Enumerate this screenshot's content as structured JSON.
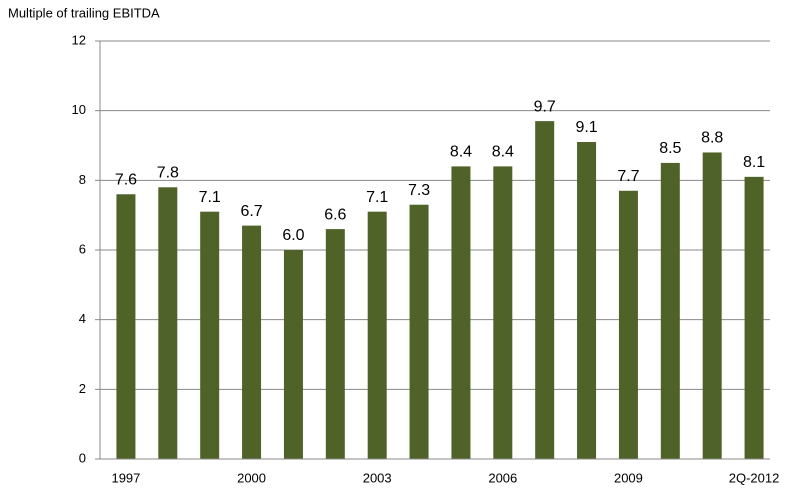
{
  "chart_data": {
    "type": "bar",
    "y_label": "Multiple of trailing EBITDA",
    "categories": [
      "1997",
      null,
      null,
      "2000",
      null,
      null,
      "2003",
      null,
      null,
      "2006",
      null,
      null,
      "2009",
      null,
      null,
      "2Q-2012"
    ],
    "values": [
      7.6,
      7.8,
      7.1,
      6.7,
      6.0,
      6.6,
      7.1,
      7.3,
      8.4,
      8.4,
      9.7,
      9.1,
      7.7,
      8.5,
      8.8,
      8.1
    ],
    "value_labels": [
      "7.6",
      "7.8",
      "7.1",
      "6.7",
      "6.0",
      "6.6",
      "7.1",
      "7.3",
      "8.4",
      "8.4",
      "9.7",
      "9.1",
      "7.7",
      "8.5",
      "8.8",
      "8.1"
    ],
    "color": "#4f6228",
    "ylim": [
      0,
      12
    ],
    "yticks": [
      0,
      2,
      4,
      6,
      8,
      10,
      12
    ],
    "grid": true
  }
}
